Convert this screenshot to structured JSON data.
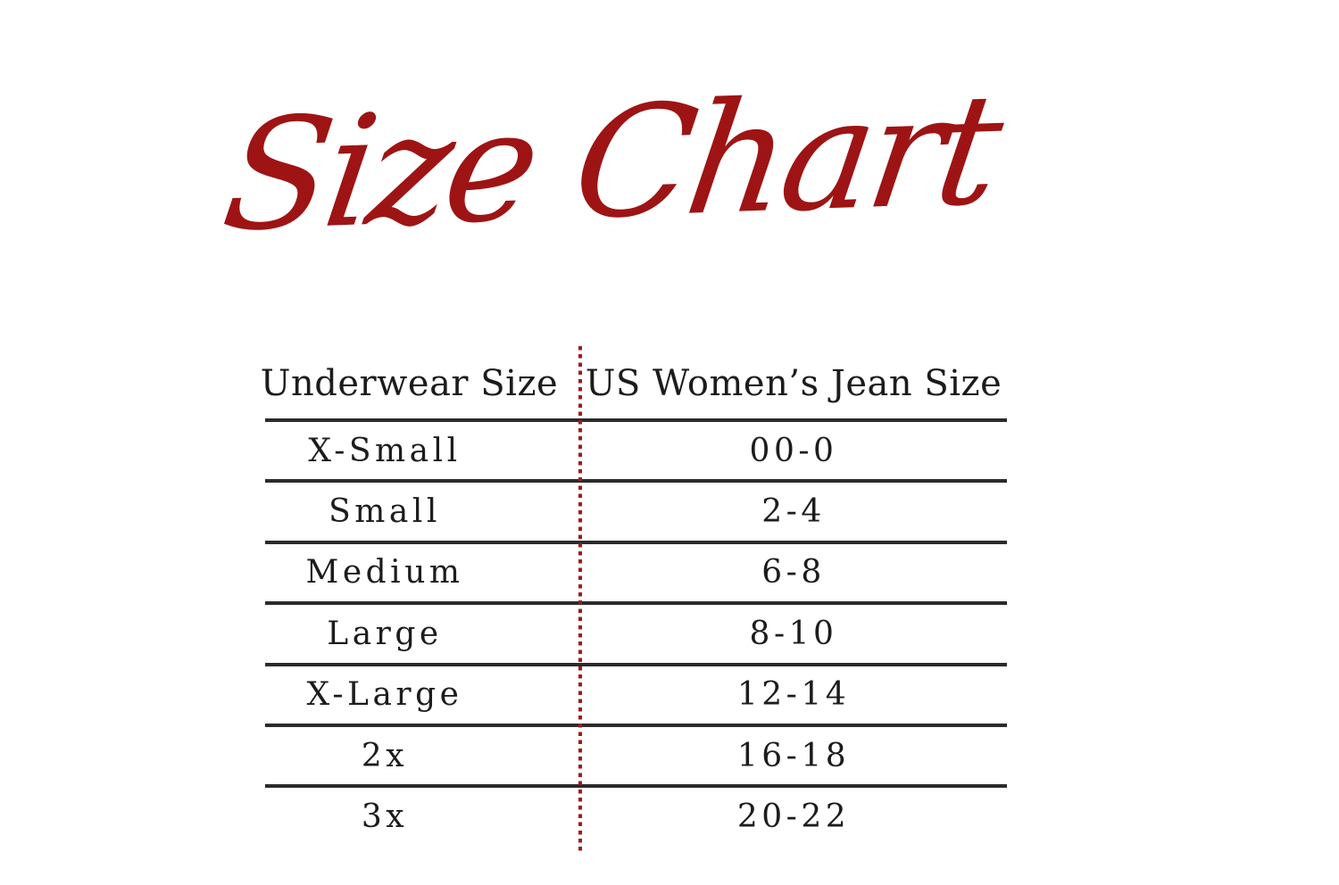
{
  "page": {
    "background": "#ffffff"
  },
  "title": {
    "text": "Size Chart",
    "color": "#9e1414",
    "style": "handwritten-script"
  },
  "colors": {
    "title_red": "#9e1414",
    "divider_dotted_red": "#a31a1a",
    "table_line_dark": "#2b2b2b",
    "text": "#1c1c1c"
  },
  "size_table": {
    "header": {
      "col1": "Underwear Size",
      "col2": "US Women’s Jean Size"
    },
    "rows": [
      {
        "size": "X-Small",
        "jean": "00-0"
      },
      {
        "size": "Small",
        "jean": "2-4"
      },
      {
        "size": "Medium",
        "jean": "6-8"
      },
      {
        "size": "Large",
        "jean": "8-10"
      },
      {
        "size": "X-Large",
        "jean": "12-14"
      },
      {
        "size": "2x",
        "jean": "16-18"
      },
      {
        "size": "3x",
        "jean": "20-22"
      }
    ]
  },
  "chart_data": {
    "type": "table",
    "title": "Size Chart",
    "columns": [
      "Underwear Size",
      "US Women’s Jean Size"
    ],
    "rows": [
      [
        "X-Small",
        "00-0"
      ],
      [
        "Small",
        "2-4"
      ],
      [
        "Medium",
        "6-8"
      ],
      [
        "Large",
        "8-10"
      ],
      [
        "X-Large",
        "12-14"
      ],
      [
        "2x",
        "16-18"
      ],
      [
        "3x",
        "20-22"
      ]
    ],
    "layout": {
      "column_divider": "vertical red dotted line",
      "row_separators": "horizontal dark lines, no outer side borders",
      "last_row_has_bottom_border": false
    }
  }
}
